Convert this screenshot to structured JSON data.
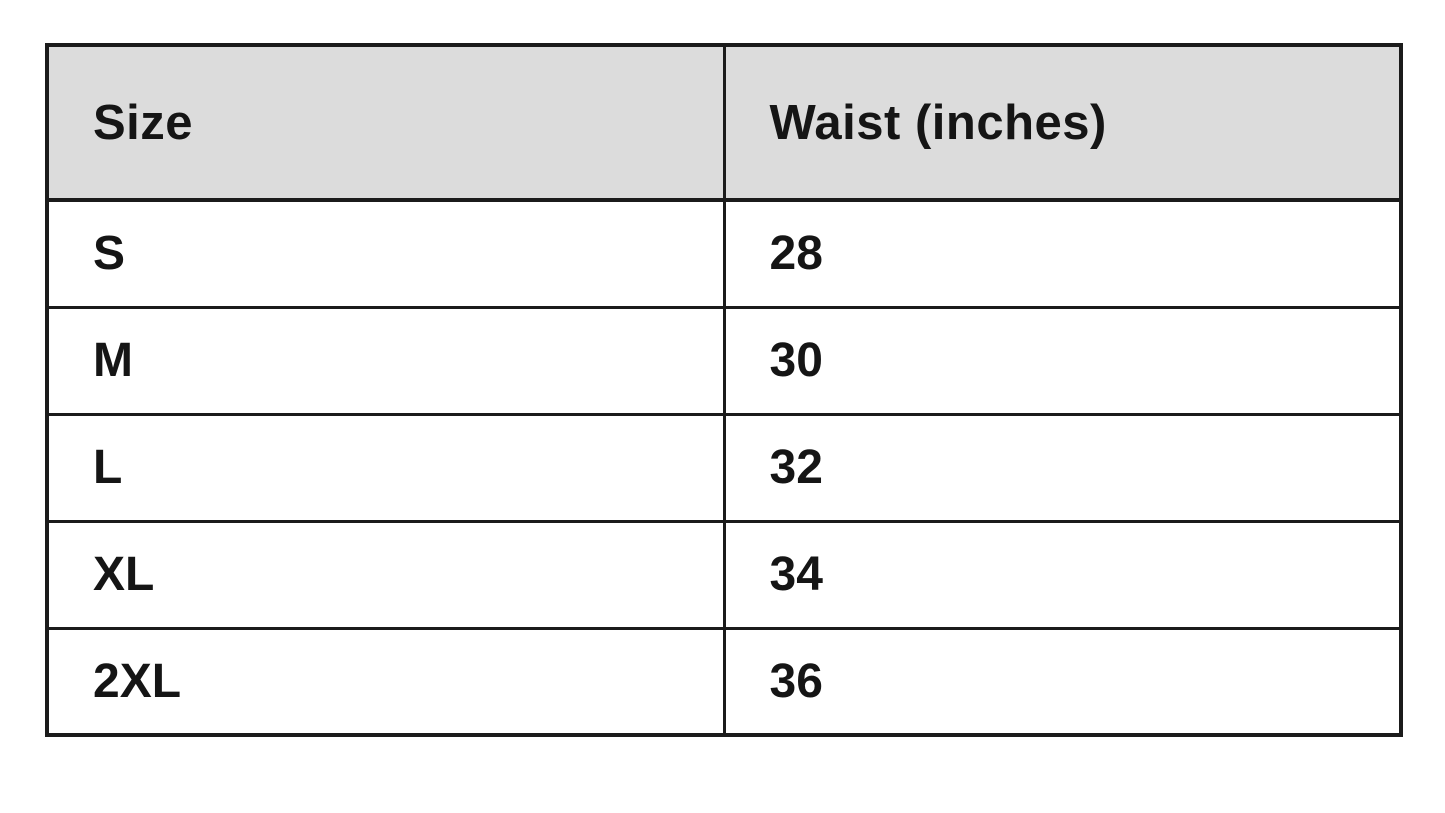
{
  "chart_data": {
    "type": "table",
    "title": "",
    "columns": [
      "Size",
      "Waist (inches)"
    ],
    "categories": [
      "S",
      "M",
      "L",
      "XL",
      "2XL"
    ],
    "values": [
      28,
      30,
      32,
      34,
      36
    ]
  },
  "table": {
    "header": {
      "size_label": "Size",
      "waist_label": "Waist (inches)"
    },
    "rows": [
      {
        "size": "S",
        "waist": "28"
      },
      {
        "size": "M",
        "waist": "30"
      },
      {
        "size": "L",
        "waist": "32"
      },
      {
        "size": "XL",
        "waist": "34"
      },
      {
        "size": "2XL",
        "waist": "36"
      }
    ]
  },
  "colors": {
    "page_bg": "#ffffff",
    "header_bg": "#dcdcdc",
    "border": "#1b1b1b",
    "text": "#151515"
  }
}
